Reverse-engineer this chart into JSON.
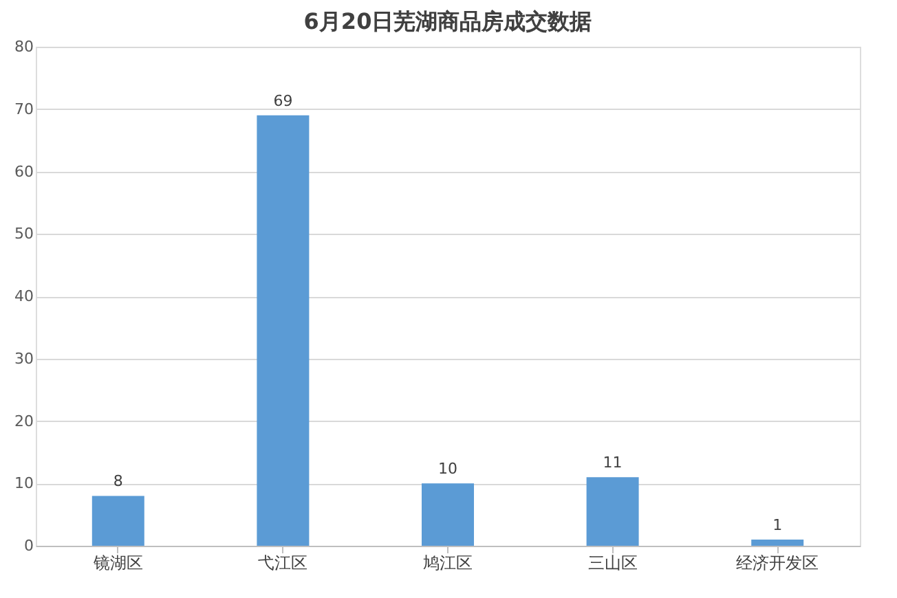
{
  "chart_data": {
    "type": "bar",
    "title": "6月20日芜湖商品房成交数据",
    "categories": [
      "镜湖区",
      "弋江区",
      "鸠江区",
      "三山区",
      "经济开发区"
    ],
    "values": [
      8,
      69,
      10,
      11,
      1
    ],
    "color": "#5b9bd5",
    "ylim": [
      0,
      80
    ],
    "yticks": [
      0,
      10,
      20,
      30,
      40,
      50,
      60,
      70,
      80
    ],
    "grid": "y",
    "data_labels": true
  }
}
